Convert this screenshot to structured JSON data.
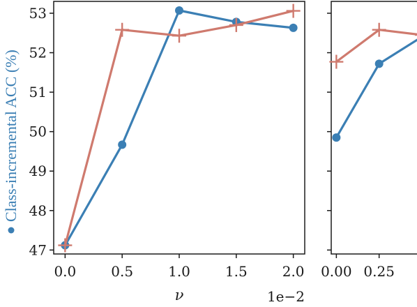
{
  "chart_data": [
    {
      "type": "line",
      "ylabel": "Class-incremental ACC (%)",
      "xlabel": "ν",
      "x_offset_label": "1e−2",
      "x": [
        0.0,
        0.5,
        1.0,
        1.5,
        2.0
      ],
      "xticks": [
        "0.0",
        "0.5",
        "1.0",
        "1.5",
        "2.0"
      ],
      "xlim": [
        -0.1,
        2.1
      ],
      "yticks": [
        "47",
        "48",
        "49",
        "50",
        "51",
        "52",
        "53"
      ],
      "ylim": [
        46.9,
        53.3
      ],
      "series": [
        {
          "marker": "circle",
          "color": "#3b7fb4",
          "values": [
            47.12,
            49.67,
            53.07,
            52.78,
            52.63
          ]
        },
        {
          "marker": "plus",
          "color": "#cf7a6e",
          "values": [
            47.12,
            52.58,
            52.43,
            52.7,
            53.06
          ]
        }
      ]
    },
    {
      "type": "line",
      "xticks": [
        "0.00",
        "0.25"
      ],
      "x": [
        0.0,
        0.25,
        0.5
      ],
      "xlim": [
        -0.03,
        0.5
      ],
      "ylim": [
        46.9,
        53.3
      ],
      "series": [
        {
          "marker": "circle",
          "color": "#3b7fb4",
          "values": [
            49.85,
            51.72,
            52.4
          ]
        },
        {
          "marker": "plus",
          "color": "#cf7a6e",
          "values": [
            51.77,
            52.58,
            52.45
          ]
        }
      ]
    }
  ]
}
